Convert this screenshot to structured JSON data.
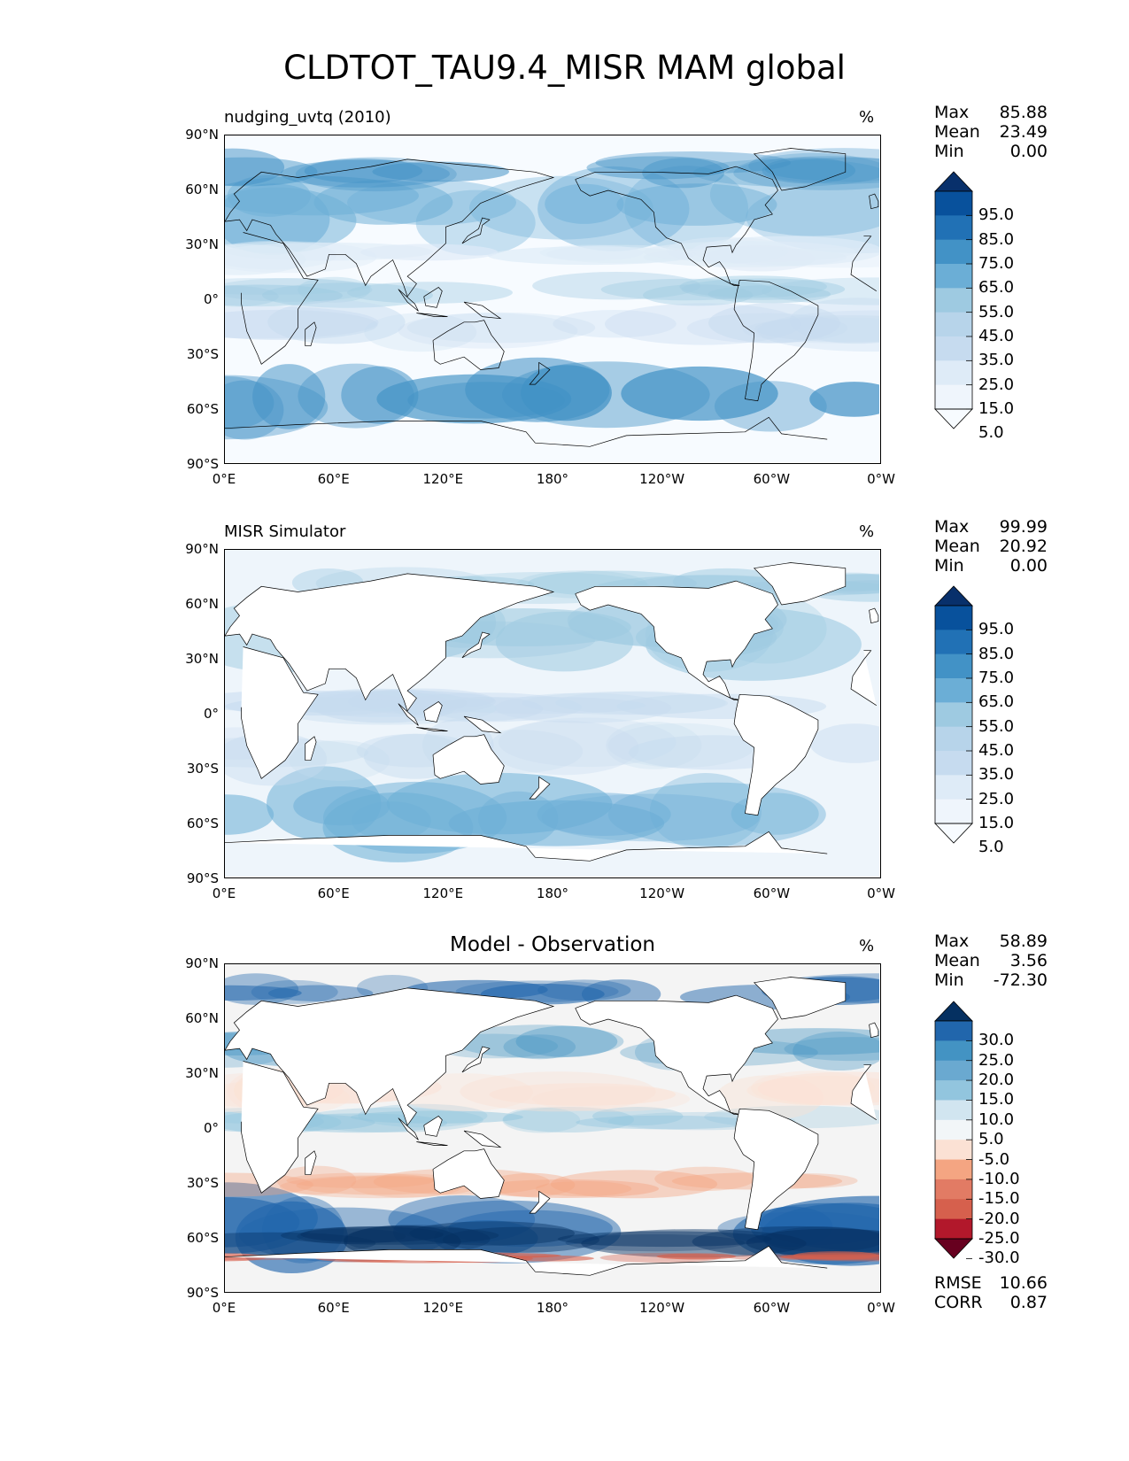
{
  "figure": {
    "title": "CLDTOT_TAU9.4_MISR MAM global"
  },
  "axes": {
    "lat_ticks": [
      "90°N",
      "60°N",
      "30°N",
      "0°",
      "30°S",
      "60°S",
      "90°S"
    ],
    "lon_ticks": [
      "0°E",
      "60°E",
      "120°E",
      "180°",
      "120°W",
      "60°W",
      "0°W"
    ]
  },
  "panels": [
    {
      "label": "nudging_uvtq (2010)",
      "unit": "%",
      "stats": [
        {
          "name": "Max",
          "value": "85.88"
        },
        {
          "name": "Mean",
          "value": "23.49"
        },
        {
          "name": "Min",
          "value": "0.00"
        }
      ],
      "colorbar": {
        "labels": [
          "95.0",
          "85.0",
          "75.0",
          "65.0",
          "55.0",
          "45.0",
          "35.0",
          "25.0",
          "15.0",
          "5.0"
        ],
        "colors": [
          "#08306b",
          "#08519c",
          "#2171b5",
          "#4292c6",
          "#6baed6",
          "#9ecae1",
          "#b7d4ea",
          "#c6dbef",
          "#deebf7",
          "#eff5fc",
          "#f7fbff"
        ]
      }
    },
    {
      "label": "MISR Simulator",
      "unit": "%",
      "stats": [
        {
          "name": "Max",
          "value": "99.99"
        },
        {
          "name": "Mean",
          "value": "20.92"
        },
        {
          "name": "Min",
          "value": "0.00"
        }
      ],
      "colorbar": {
        "labels": [
          "95.0",
          "85.0",
          "75.0",
          "65.0",
          "55.0",
          "45.0",
          "35.0",
          "25.0",
          "15.0",
          "5.0"
        ],
        "colors": [
          "#08306b",
          "#08519c",
          "#2171b5",
          "#4292c6",
          "#6baed6",
          "#9ecae1",
          "#b7d4ea",
          "#c6dbef",
          "#deebf7",
          "#eff5fc",
          "#f7fbff"
        ]
      }
    },
    {
      "label": "Model - Observation",
      "unit": "%",
      "stats": [
        {
          "name": "Max",
          "value": "58.89"
        },
        {
          "name": "Mean",
          "value": "3.56"
        },
        {
          "name": "Min",
          "value": "-72.30"
        }
      ],
      "extra_stats": [
        {
          "name": "RMSE",
          "value": "10.66"
        },
        {
          "name": "CORR",
          "value": "0.87"
        }
      ],
      "colorbar": {
        "labels": [
          "30.0",
          "25.0",
          "20.0",
          "15.0",
          "10.0",
          "5.0",
          "-5.0",
          "-10.0",
          "-15.0",
          "-20.0",
          "-25.0",
          "-30.0"
        ],
        "colors": [
          "#053061",
          "#2166ac",
          "#4393c3",
          "#6aa9d0",
          "#92c5de",
          "#d1e5f0",
          "#f2f6f8",
          "#fbe1d4",
          "#f4a582",
          "#e27b64",
          "#d6604d",
          "#b2182b",
          "#67001f"
        ]
      }
    }
  ]
}
